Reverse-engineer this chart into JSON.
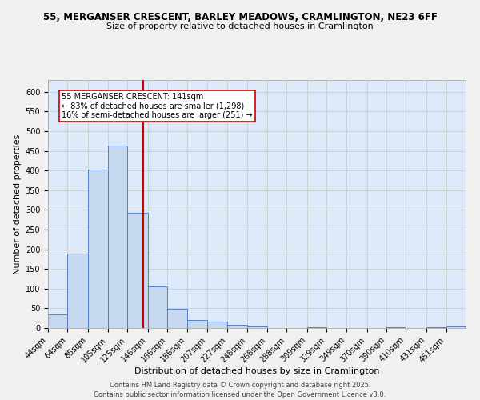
{
  "title_line1": "55, MERGANSER CRESCENT, BARLEY MEADOWS, CRAMLINGTON, NE23 6FF",
  "title_line2": "Size of property relative to detached houses in Cramlington",
  "xlabel": "Distribution of detached houses by size in Cramlington",
  "ylabel": "Number of detached properties",
  "bar_labels": [
    "44sqm",
    "64sqm",
    "85sqm",
    "105sqm",
    "125sqm",
    "146sqm",
    "166sqm",
    "186sqm",
    "207sqm",
    "227sqm",
    "248sqm",
    "268sqm",
    "288sqm",
    "309sqm",
    "329sqm",
    "349sqm",
    "370sqm",
    "390sqm",
    "410sqm",
    "431sqm",
    "451sqm"
  ],
  "bar_values": [
    35,
    188,
    403,
    463,
    292,
    106,
    48,
    20,
    16,
    8,
    4,
    1,
    0,
    3,
    0,
    0,
    0,
    3,
    0,
    3,
    4
  ],
  "bar_edges": [
    44,
    64,
    85,
    105,
    125,
    146,
    166,
    186,
    207,
    227,
    248,
    268,
    288,
    309,
    329,
    349,
    370,
    390,
    410,
    431,
    451,
    471
  ],
  "bar_color": "#c5d8f0",
  "bar_edge_color": "#4472c4",
  "vline_x": 141,
  "vline_color": "#cc0000",
  "annotation_text": "55 MERGANSER CRESCENT: 141sqm\n← 83% of detached houses are smaller (1,298)\n16% of semi-detached houses are larger (251) →",
  "annotation_box_color": "#ffffff",
  "annotation_box_edge": "#cc0000",
  "ylim": [
    0,
    630
  ],
  "yticks": [
    0,
    50,
    100,
    150,
    200,
    250,
    300,
    350,
    400,
    450,
    500,
    550,
    600
  ],
  "grid_color": "#cccccc",
  "bg_color": "#dce9f8",
  "fig_bg_color": "#f0f0f0",
  "footer_line1": "Contains HM Land Registry data © Crown copyright and database right 2025.",
  "footer_line2": "Contains public sector information licensed under the Open Government Licence v3.0.",
  "title_fontsize": 8.5,
  "subtitle_fontsize": 8,
  "axis_label_fontsize": 8,
  "tick_fontsize": 7,
  "annotation_fontsize": 7,
  "footer_fontsize": 6
}
